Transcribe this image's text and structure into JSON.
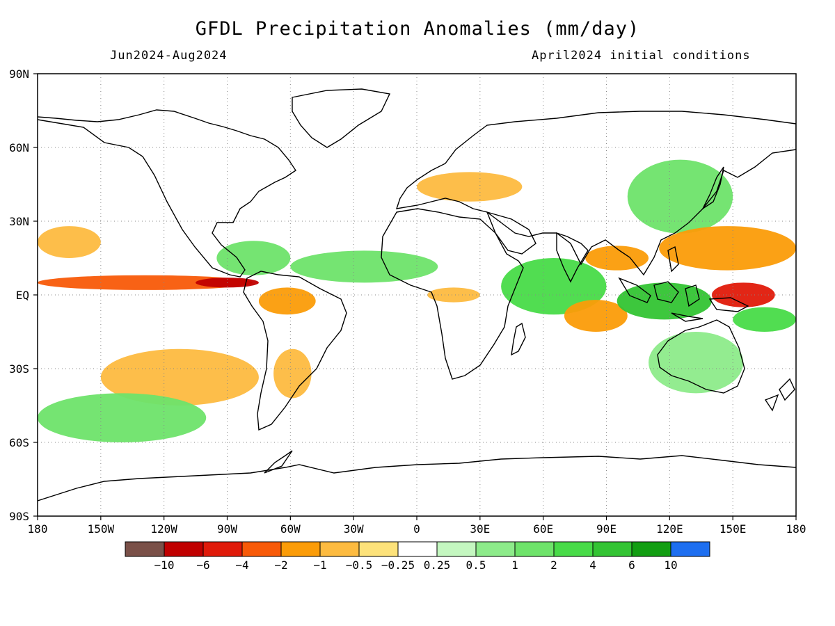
{
  "title": "GFDL Precipitation Anomalies (mm/day)",
  "period": "Jun2024-Aug2024",
  "init_conditions": "April2024 initial conditions",
  "lat_labels": [
    "90N",
    "60N",
    "30N",
    "EQ",
    "30S",
    "60S",
    "90S"
  ],
  "lon_labels": [
    "180",
    "150W",
    "120W",
    "90W",
    "60W",
    "30W",
    "0",
    "30E",
    "60E",
    "90E",
    "120E",
    "150E",
    "180"
  ],
  "colorbar": {
    "labels": [
      "−10",
      "−6",
      "−4",
      "−2",
      "−1",
      "−0.5",
      "−0.25",
      "0.25",
      "0.5",
      "1",
      "2",
      "4",
      "6",
      "10"
    ],
    "colors": [
      "#7a5048",
      "#c00000",
      "#e01a0a",
      "#f85a08",
      "#fb9c08",
      "#fdbb40",
      "#fde27a",
      "#ffffff",
      "#c4f7c0",
      "#8deb8a",
      "#6ee36a",
      "#48db48",
      "#33c433",
      "#129e12",
      "#1e6ff0"
    ]
  },
  "anomaly_patches": [
    {
      "name": "tropical-pacific-dry-band",
      "lon": [
        -180,
        -78
      ],
      "lat": [
        2,
        8
      ],
      "value": -4
    },
    {
      "name": "eastern-pacific-dry-core",
      "lon": [
        -105,
        -75
      ],
      "lat": [
        3,
        7
      ],
      "value": -10
    },
    {
      "name": "northeast-pacific-dry",
      "lon": [
        -180,
        -150
      ],
      "lat": [
        15,
        28
      ],
      "value": -1
    },
    {
      "name": "southeast-pacific-dry-band",
      "lon": [
        -150,
        -75
      ],
      "lat": [
        -45,
        -22
      ],
      "value": -1
    },
    {
      "name": "southern-ocean-wet",
      "lon": [
        -180,
        -100
      ],
      "lat": [
        -60,
        -40
      ],
      "value": 1
    },
    {
      "name": "caribbean-wet",
      "lon": [
        -95,
        -60
      ],
      "lat": [
        8,
        22
      ],
      "value": 1
    },
    {
      "name": "tropical-atlantic-wet",
      "lon": [
        -60,
        10
      ],
      "lat": [
        5,
        18
      ],
      "value": 1
    },
    {
      "name": "amazon-dry",
      "lon": [
        -75,
        -48
      ],
      "lat": [
        -8,
        3
      ],
      "value": -2
    },
    {
      "name": "south-america-dry",
      "lon": [
        -68,
        -50
      ],
      "lat": [
        -42,
        -22
      ],
      "value": -1
    },
    {
      "name": "europe-dry",
      "lon": [
        0,
        50
      ],
      "lat": [
        38,
        50
      ],
      "value": -1
    },
    {
      "name": "west-africa-dry",
      "lon": [
        5,
        30
      ],
      "lat": [
        -3,
        3
      ],
      "value": -1
    },
    {
      "name": "indian-ocean-wet",
      "lon": [
        40,
        90
      ],
      "lat": [
        -8,
        15
      ],
      "value": 2
    },
    {
      "name": "bay-of-bengal-dry",
      "lon": [
        80,
        110
      ],
      "lat": [
        10,
        20
      ],
      "value": -2
    },
    {
      "name": "east-indian-ocean-dry",
      "lon": [
        70,
        100
      ],
      "lat": [
        -15,
        -2
      ],
      "value": -2
    },
    {
      "name": "maritime-continent-wet",
      "lon": [
        95,
        140
      ],
      "lat": [
        -10,
        5
      ],
      "value": 4
    },
    {
      "name": "east-asia-wet",
      "lon": [
        100,
        150
      ],
      "lat": [
        25,
        55
      ],
      "value": 1
    },
    {
      "name": "west-pacific-dry",
      "lon": [
        115,
        180
      ],
      "lat": [
        10,
        28
      ],
      "value": -2
    },
    {
      "name": "west-pacific-dry-core",
      "lon": [
        140,
        170
      ],
      "lat": [
        -5,
        5
      ],
      "value": -6
    },
    {
      "name": "south-pacific-convergence-wet",
      "lon": [
        150,
        180
      ],
      "lat": [
        -15,
        -5
      ],
      "value": 2
    },
    {
      "name": "australia-wet",
      "lon": [
        110,
        155
      ],
      "lat": [
        -40,
        -15
      ],
      "value": 0.5
    }
  ],
  "icons": [
    "coastline-outline",
    "gridlines"
  ]
}
